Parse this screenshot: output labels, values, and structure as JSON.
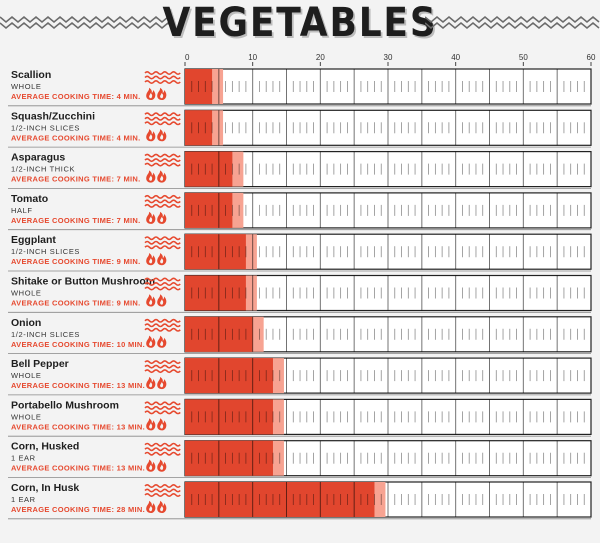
{
  "title": "VEGETABLES",
  "icons": {
    "heat": "heat-waves-icon",
    "flame": "flame-icon"
  },
  "colors": {
    "bar_dark": "#e1462e",
    "bar_light": "#f7a392",
    "label_accent": "#e6492f",
    "ink": "#1e1e1e"
  },
  "chart_data": {
    "type": "bar",
    "orientation": "horizontal",
    "title": "VEGETABLES",
    "xlim": [
      0,
      60
    ],
    "x_ticks": [
      0,
      10,
      20,
      30,
      40,
      50,
      60
    ],
    "time_label": "AVERAGE COOKING TIME:",
    "items": [
      {
        "name": "Scallion",
        "prep": "WHOLE",
        "time": 4,
        "time_text": "4 MIN."
      },
      {
        "name": "Squash/Zucchini",
        "prep": "1/2-INCH SLICES",
        "time": 4,
        "time_text": "4 MIN."
      },
      {
        "name": "Asparagus",
        "prep": "1/2-INCH THICK",
        "time": 7,
        "time_text": "7 MIN."
      },
      {
        "name": "Tomato",
        "prep": "HALF",
        "time": 7,
        "time_text": "7 MIN."
      },
      {
        "name": "Eggplant",
        "prep": "1/2-INCH SLICES",
        "time": 9,
        "time_text": "9 MIN."
      },
      {
        "name": "Shitake or Button Mushroom",
        "prep": "WHOLE",
        "time": 9,
        "time_text": "9 MIN."
      },
      {
        "name": "Onion",
        "prep": "1/2-INCH SLICES",
        "time": 10,
        "time_text": "10 MIN."
      },
      {
        "name": "Bell Pepper",
        "prep": "WHOLE",
        "time": 13,
        "time_text": "13 MIN."
      },
      {
        "name": "Portabello Mushroom",
        "prep": "WHOLE",
        "time": 13,
        "time_text": "13 MIN."
      },
      {
        "name": "Corn, Husked",
        "prep": "1 EAR",
        "time": 13,
        "time_text": "13 MIN."
      },
      {
        "name": "Corn, In Husk",
        "prep": "1 EAR",
        "time": 28,
        "time_text": "28 MIN."
      }
    ]
  }
}
